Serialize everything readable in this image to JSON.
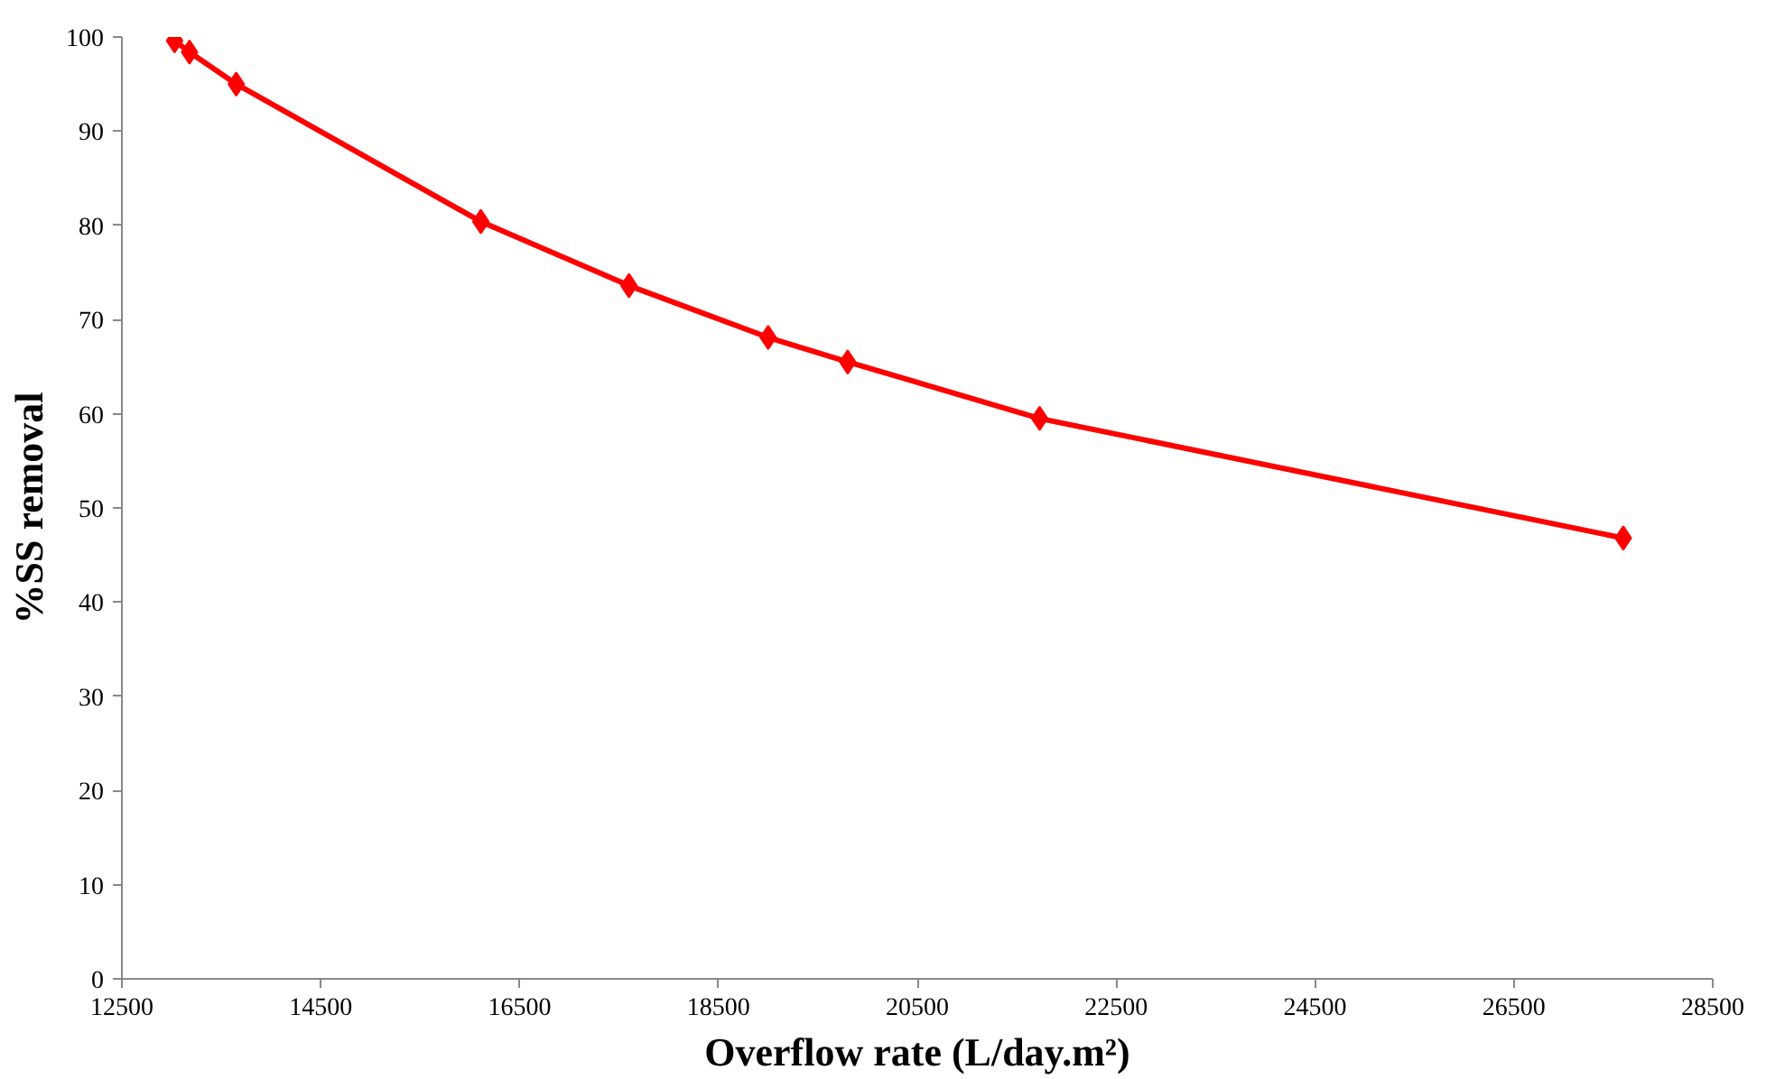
{
  "chart_data": {
    "type": "line",
    "xlabel": "Overflow rate (L/day.m²)",
    "ylabel": "%SS removal",
    "x": [
      13030,
      13180,
      13650,
      16110,
      17600,
      19000,
      19800,
      21730,
      27600
    ],
    "series": [
      {
        "color": "#ff0000",
        "values": [
          99.6,
          98.4,
          95.0,
          80.4,
          73.6,
          68.1,
          65.5,
          59.5,
          46.8
        ]
      }
    ],
    "xlim": [
      12500,
      28500
    ],
    "xticks": [
      12500,
      14500,
      16500,
      18500,
      20500,
      22500,
      24500,
      26500,
      28500
    ],
    "ylim": [
      0,
      100
    ],
    "yticks": [
      0,
      10,
      20,
      30,
      40,
      50,
      60,
      70,
      80,
      90,
      100
    ],
    "marker": "diamond",
    "line_style": "solid",
    "grid": false
  }
}
